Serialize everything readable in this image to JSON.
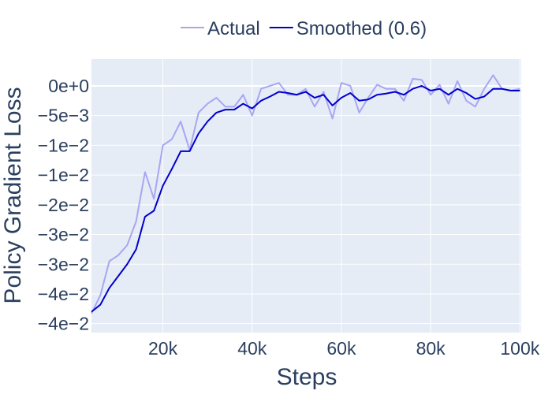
{
  "chart_data": {
    "type": "line",
    "title": "",
    "xlabel": "Steps",
    "ylabel": "Policy Gradient Loss",
    "xlim": [
      4000,
      100300
    ],
    "ylim": [
      -0.0415,
      0.0045
    ],
    "grid": true,
    "legend_position": "top-center",
    "background_color": "#e5ecf6",
    "x_ticks": [
      {
        "value": 20000,
        "label": "20k"
      },
      {
        "value": 40000,
        "label": "40k"
      },
      {
        "value": 60000,
        "label": "60k"
      },
      {
        "value": 80000,
        "label": "80k"
      },
      {
        "value": 100000,
        "label": "100k"
      }
    ],
    "y_ticks": [
      {
        "value": 0.0,
        "label": "0e+0"
      },
      {
        "value": -0.005,
        "label": "−5e−3"
      },
      {
        "value": -0.01,
        "label": "−1e−2"
      },
      {
        "value": -0.015,
        "label": "−1e−2"
      },
      {
        "value": -0.02,
        "label": "−2e−2"
      },
      {
        "value": -0.025,
        "label": "−3e−2"
      },
      {
        "value": -0.03,
        "label": "−3e−2"
      },
      {
        "value": -0.035,
        "label": "−4e−2"
      },
      {
        "value": -0.04,
        "label": "−4e−2"
      }
    ],
    "x": [
      4000,
      6000,
      8000,
      10000,
      12000,
      14000,
      16000,
      18000,
      20000,
      22000,
      24000,
      26000,
      28000,
      30000,
      32000,
      34000,
      36000,
      38000,
      40000,
      42000,
      44000,
      46000,
      48000,
      50000,
      52000,
      54000,
      56000,
      58000,
      60000,
      62000,
      64000,
      66000,
      68000,
      70000,
      72000,
      74000,
      76000,
      78000,
      80000,
      82000,
      84000,
      86000,
      88000,
      90000,
      92000,
      94000,
      96000,
      98000,
      100000
    ],
    "series": [
      {
        "name": "Actual",
        "color": "#a8a6f2",
        "values": [
          -0.0383,
          -0.0352,
          -0.0295,
          -0.0285,
          -0.0268,
          -0.0228,
          -0.0145,
          -0.019,
          -0.01,
          -0.009,
          -0.006,
          -0.0108,
          -0.0045,
          -0.003,
          -0.002,
          -0.0035,
          -0.0035,
          -0.0015,
          -0.005,
          -0.0005,
          0.0,
          0.0005,
          -0.0015,
          -0.0015,
          -0.0005,
          -0.0035,
          -0.001,
          -0.0055,
          0.0005,
          0.0,
          -0.0045,
          -0.002,
          0.0002,
          -0.0005,
          -0.0005,
          -0.0025,
          0.0012,
          0.001,
          -0.0015,
          0.0002,
          -0.003,
          0.0008,
          -0.0025,
          -0.0035,
          -0.0005,
          0.0018,
          -0.0005,
          -0.0008,
          -0.0005
        ]
      },
      {
        "name": "Smoothed (0.6)",
        "color": "#0000cc",
        "values": [
          -0.038,
          -0.0368,
          -0.034,
          -0.032,
          -0.03,
          -0.0275,
          -0.022,
          -0.021,
          -0.0168,
          -0.014,
          -0.011,
          -0.011,
          -0.008,
          -0.006,
          -0.0045,
          -0.004,
          -0.004,
          -0.003,
          -0.0038,
          -0.0025,
          -0.0018,
          -0.001,
          -0.0012,
          -0.0015,
          -0.001,
          -0.002,
          -0.0015,
          -0.0033,
          -0.002,
          -0.0012,
          -0.0025,
          -0.0023,
          -0.0015,
          -0.0013,
          -0.001,
          -0.0015,
          -0.0005,
          0.0,
          -0.0008,
          -0.0005,
          -0.0015,
          -0.0005,
          -0.0012,
          -0.0022,
          -0.0018,
          -0.0005,
          -0.0005,
          -0.0008,
          -0.0008
        ]
      }
    ]
  }
}
